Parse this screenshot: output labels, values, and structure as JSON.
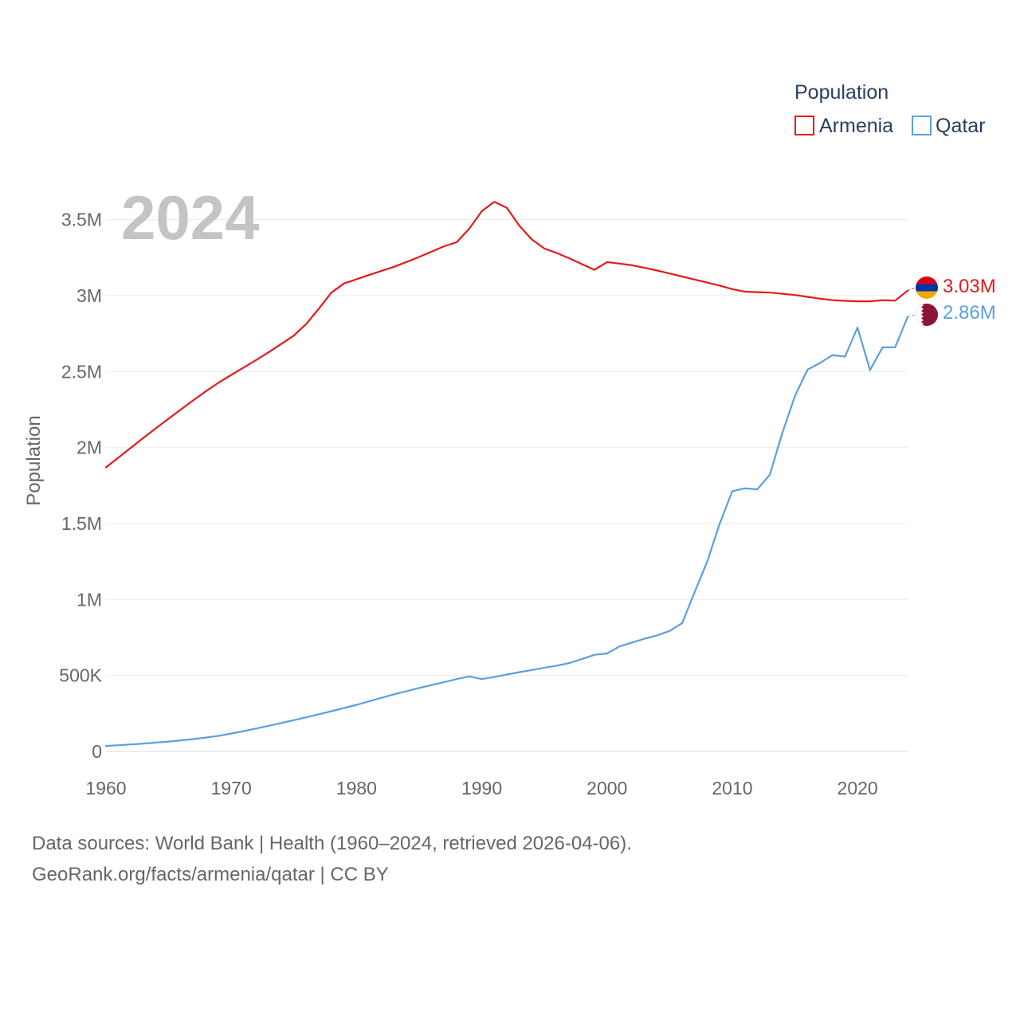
{
  "chart_data": {
    "type": "line",
    "title": "",
    "xlabel": "",
    "ylabel": "Population",
    "year_label": "2024",
    "xlim": [
      1960,
      2024
    ],
    "ylim": [
      0,
      3750000
    ],
    "x_ticks": [
      1960,
      1970,
      1980,
      1990,
      2000,
      2010,
      2020
    ],
    "y_ticks": [
      0,
      500000,
      1000000,
      1500000,
      2000000,
      2500000,
      3000000,
      3500000
    ],
    "y_tick_labels": [
      "0",
      "500K",
      "1M",
      "1.5M",
      "2M",
      "2.5M",
      "3M",
      "3.5M"
    ],
    "grid": true,
    "legend": {
      "title": "Population",
      "position": "top-right"
    },
    "x": [
      1960,
      1961,
      1962,
      1963,
      1964,
      1965,
      1966,
      1967,
      1968,
      1969,
      1970,
      1971,
      1972,
      1973,
      1974,
      1975,
      1976,
      1977,
      1978,
      1979,
      1980,
      1981,
      1982,
      1983,
      1984,
      1985,
      1986,
      1987,
      1988,
      1989,
      1990,
      1991,
      1992,
      1993,
      1994,
      1995,
      1996,
      1997,
      1998,
      1999,
      2000,
      2001,
      2002,
      2003,
      2004,
      2005,
      2006,
      2007,
      2008,
      2009,
      2010,
      2011,
      2012,
      2013,
      2014,
      2015,
      2016,
      2017,
      2018,
      2019,
      2020,
      2021,
      2022,
      2023,
      2024
    ],
    "series": [
      {
        "name": "Armenia",
        "color": "#e41a1c",
        "end_label": "3.03M",
        "values": [
          1870000,
          1935000,
          2000000,
          2065000,
          2128000,
          2190000,
          2252000,
          2313000,
          2372000,
          2428000,
          2478000,
          2527000,
          2577000,
          2628000,
          2682000,
          2737000,
          2815000,
          2915000,
          3020000,
          3080000,
          3108000,
          3136000,
          3163000,
          3190000,
          3222000,
          3255000,
          3290000,
          3325000,
          3352000,
          3440000,
          3556000,
          3618000,
          3578000,
          3460000,
          3370000,
          3310000,
          3280000,
          3245000,
          3207000,
          3170000,
          3221000,
          3211000,
          3200000,
          3183000,
          3165000,
          3146000,
          3126000,
          3106000,
          3086000,
          3066000,
          3043000,
          3026000,
          3023000,
          3020000,
          3012000,
          3004000,
          2992000,
          2980000,
          2970000,
          2966000,
          2963000,
          2963000,
          2970000,
          2967000,
          3033000
        ]
      },
      {
        "name": "Qatar",
        "color": "#5b9fe0",
        "end_label": "2.86M",
        "values": [
          36000,
          41000,
          46000,
          52000,
          58000,
          65000,
          73000,
          82000,
          92000,
          103000,
          118000,
          134000,
          151000,
          169000,
          187000,
          206000,
          225000,
          245000,
          265000,
          286000,
          307000,
          330000,
          353000,
          376000,
          397000,
          418000,
          437000,
          456000,
          476000,
          494000,
          476000,
          490000,
          506000,
          522000,
          536000,
          551000,
          565000,
          582000,
          608000,
          636000,
          645000,
          691000,
          717000,
          742000,
          764000,
          793000,
          845000,
          1050000,
          1250000,
          1500000,
          1713000,
          1732000,
          1725000,
          1822000,
          2098000,
          2338000,
          2512000,
          2557000,
          2609000,
          2599000,
          2790000,
          2510000,
          2660000,
          2660000,
          2860000
        ]
      }
    ]
  },
  "footer": {
    "line1": "Data sources: World Bank | Health (1960–2024, retrieved 2026-04-06).",
    "line2": "GeoRank.org/facts/armenia/qatar | CC BY"
  },
  "icons": {
    "armenia_flag": "armenia-flag-icon",
    "qatar_flag": "qatar-flag-icon"
  }
}
